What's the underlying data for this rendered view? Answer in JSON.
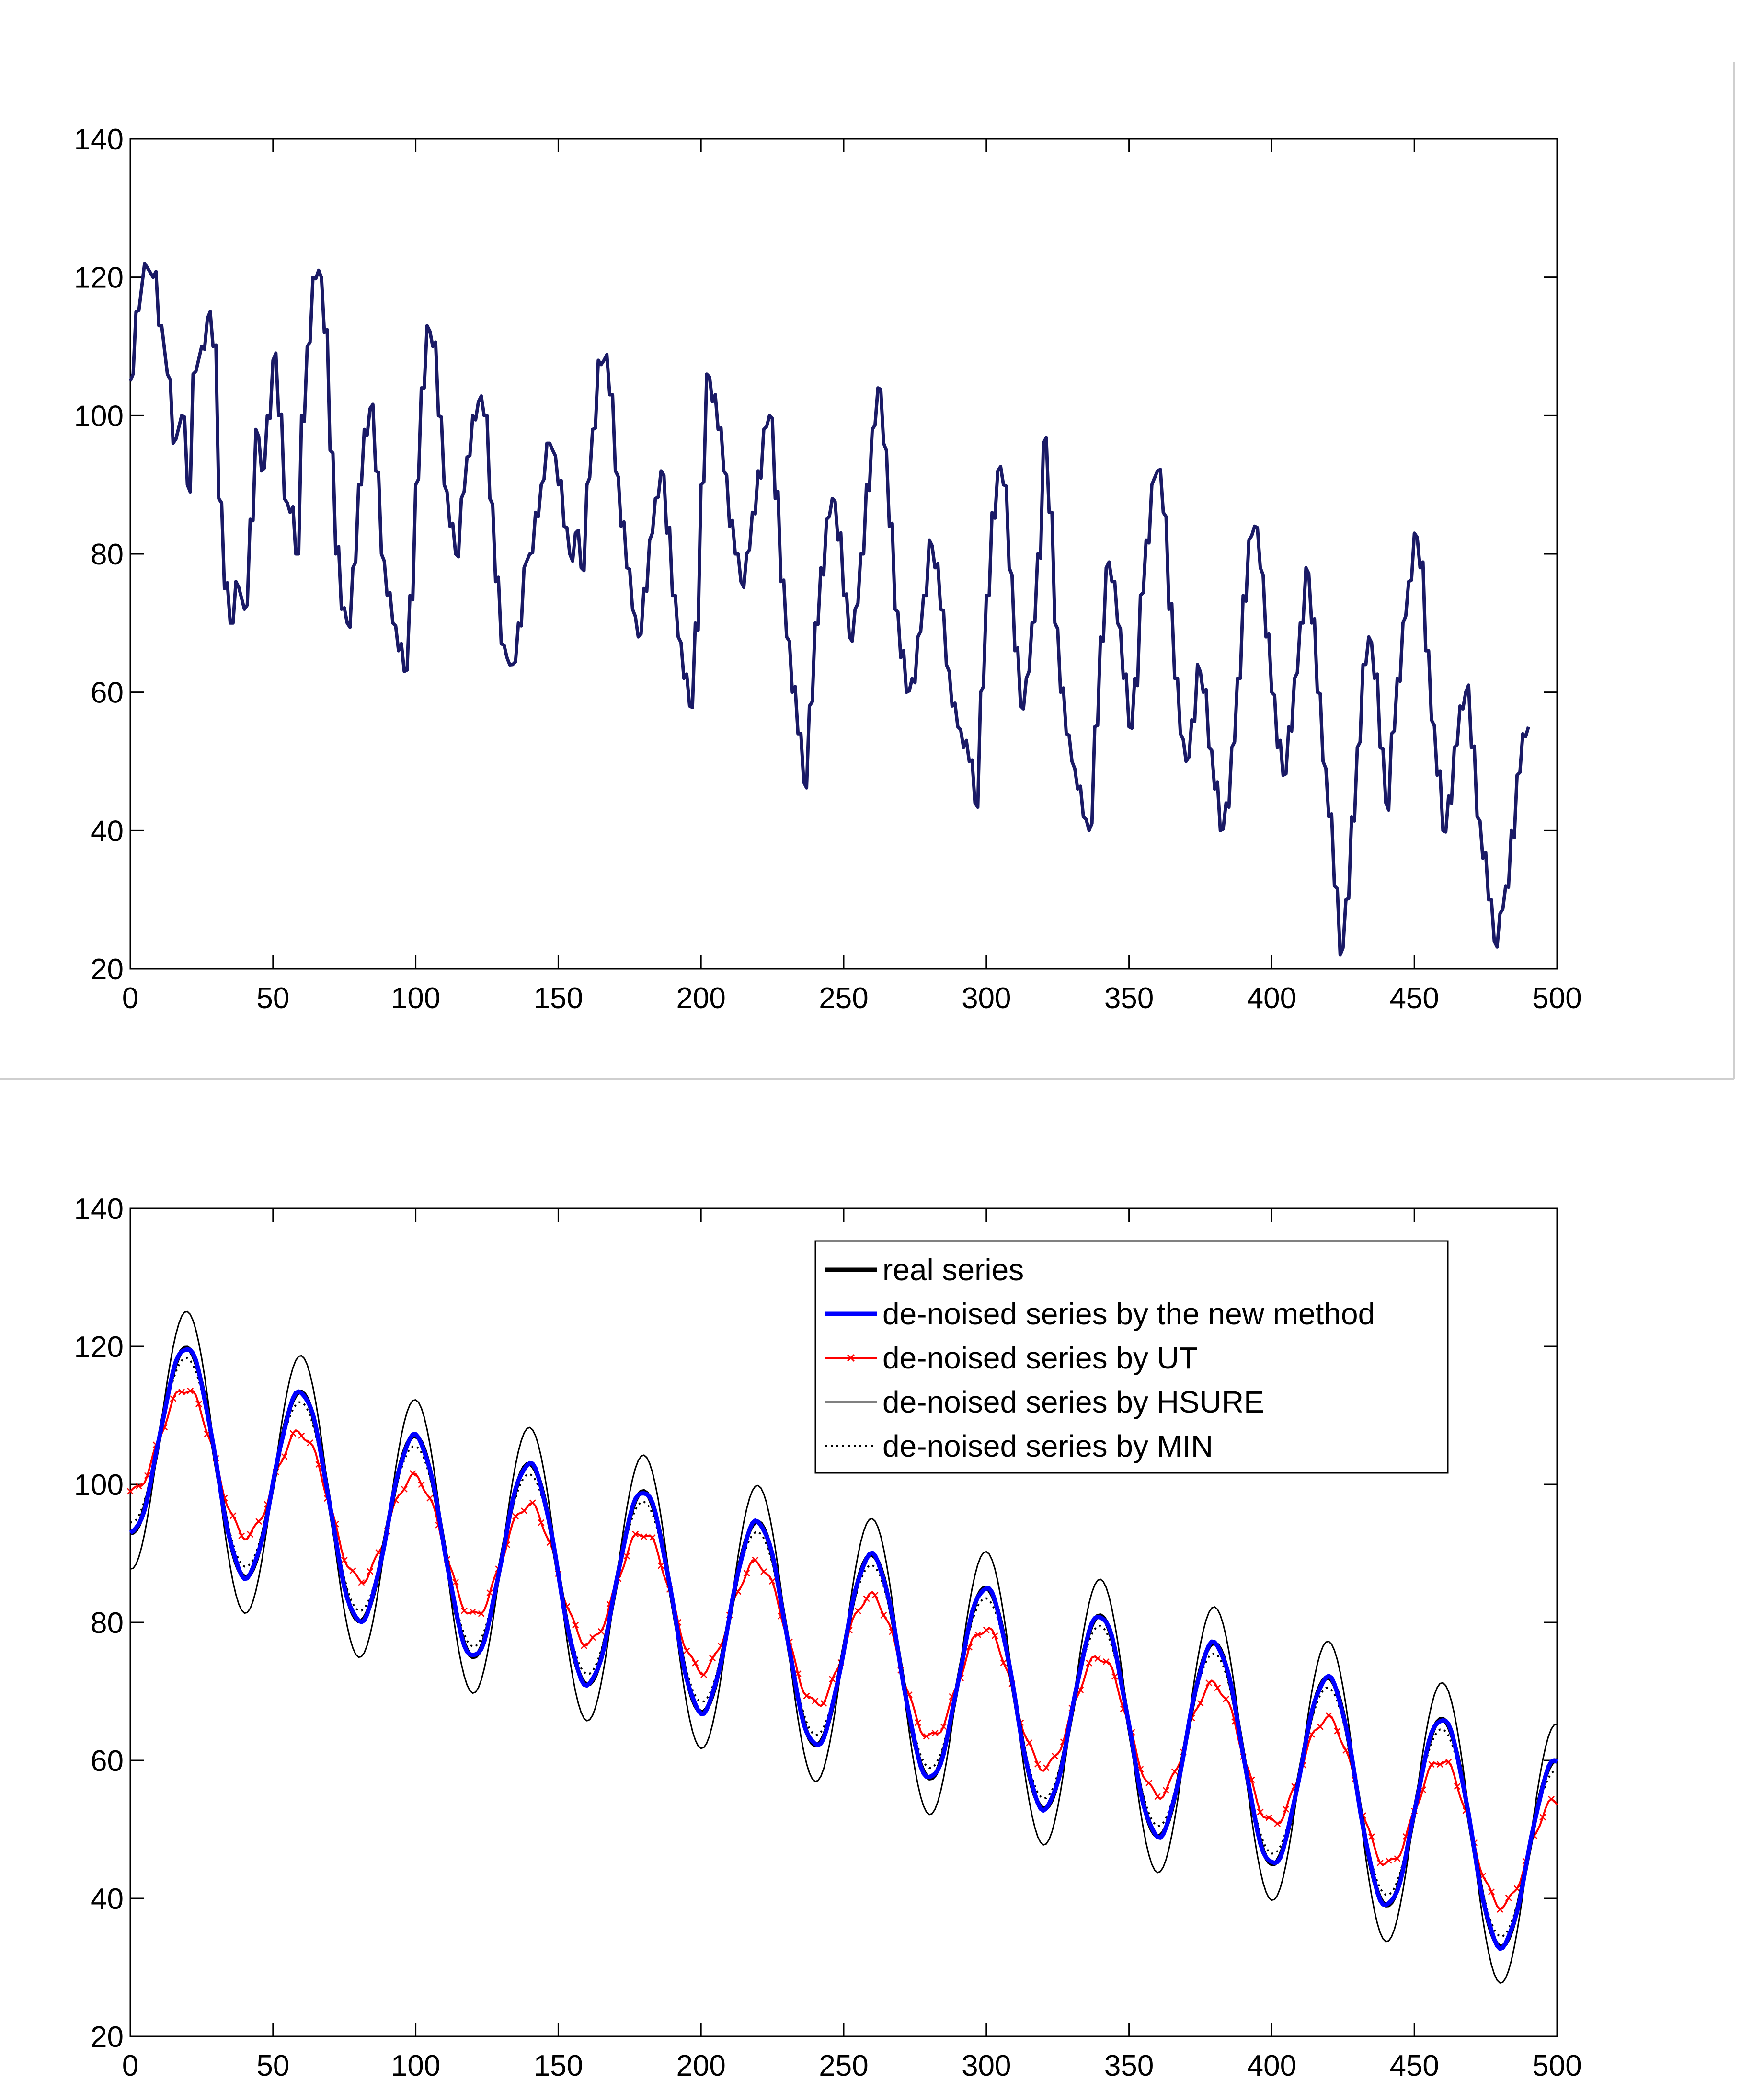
{
  "chart_data": [
    {
      "type": "line",
      "xlim": [
        0,
        500
      ],
      "ylim": [
        20,
        140
      ],
      "x_ticks": [
        "0",
        "50",
        "100",
        "150",
        "200",
        "250",
        "300",
        "350",
        "400",
        "450",
        "500"
      ],
      "y_ticks": [
        "20",
        "40",
        "60",
        "80",
        "100",
        "120",
        "140"
      ],
      "grid": false,
      "series": [
        {
          "color": "#1a1a66",
          "style": "solid",
          "points": [
            [
              0,
              105
            ],
            [
              2,
              115
            ],
            [
              5,
              122
            ],
            [
              8,
              120
            ],
            [
              10,
              113
            ],
            [
              13,
              106
            ],
            [
              15,
              96
            ],
            [
              18,
              100
            ],
            [
              20,
              90
            ],
            [
              22,
              106
            ],
            [
              25,
              110
            ],
            [
              27,
              114
            ],
            [
              29,
              110
            ],
            [
              31,
              88
            ],
            [
              33,
              75
            ],
            [
              35,
              70
            ],
            [
              37,
              76
            ],
            [
              40,
              72
            ],
            [
              42,
              85
            ],
            [
              44,
              98
            ],
            [
              46,
              92
            ],
            [
              48,
              100
            ],
            [
              50,
              108
            ],
            [
              52,
              100
            ],
            [
              54,
              88
            ],
            [
              56,
              86
            ],
            [
              58,
              80
            ],
            [
              60,
              100
            ],
            [
              62,
              110
            ],
            [
              64,
              120
            ],
            [
              66,
              121
            ],
            [
              68,
              112
            ],
            [
              70,
              95
            ],
            [
              72,
              80
            ],
            [
              74,
              72
            ],
            [
              76,
              70
            ],
            [
              78,
              78
            ],
            [
              80,
              90
            ],
            [
              82,
              98
            ],
            [
              84,
              101
            ],
            [
              86,
              92
            ],
            [
              88,
              80
            ],
            [
              90,
              74
            ],
            [
              92,
              70
            ],
            [
              94,
              66
            ],
            [
              96,
              63
            ],
            [
              98,
              74
            ],
            [
              100,
              90
            ],
            [
              102,
              104
            ],
            [
              104,
              113
            ],
            [
              106,
              110
            ],
            [
              108,
              100
            ],
            [
              110,
              90
            ],
            [
              112,
              84
            ],
            [
              114,
              80
            ],
            [
              116,
              88
            ],
            [
              118,
              94
            ],
            [
              120,
              100
            ],
            [
              122,
              102
            ],
            [
              124,
              100
            ],
            [
              126,
              88
            ],
            [
              128,
              76
            ],
            [
              130,
              67
            ],
            [
              132,
              65
            ],
            [
              134,
              64
            ],
            [
              136,
              70
            ],
            [
              138,
              78
            ],
            [
              140,
              80
            ],
            [
              142,
              86
            ],
            [
              144,
              90
            ],
            [
              146,
              96
            ],
            [
              148,
              95
            ],
            [
              150,
              90
            ],
            [
              152,
              84
            ],
            [
              154,
              80
            ],
            [
              156,
              83
            ],
            [
              158,
              78
            ],
            [
              160,
              90
            ],
            [
              162,
              98
            ],
            [
              164,
              108
            ],
            [
              166,
              108
            ],
            [
              168,
              103
            ],
            [
              170,
              92
            ],
            [
              172,
              84
            ],
            [
              174,
              78
            ],
            [
              176,
              72
            ],
            [
              178,
              68
            ],
            [
              180,
              75
            ],
            [
              182,
              82
            ],
            [
              184,
              88
            ],
            [
              186,
              92
            ],
            [
              188,
              83
            ],
            [
              190,
              74
            ],
            [
              192,
              68
            ],
            [
              194,
              62
            ],
            [
              196,
              58
            ],
            [
              198,
              70
            ],
            [
              200,
              90
            ],
            [
              202,
              106
            ],
            [
              204,
              102
            ],
            [
              206,
              98
            ],
            [
              208,
              92
            ],
            [
              210,
              84
            ],
            [
              212,
              80
            ],
            [
              214,
              76
            ],
            [
              216,
              80
            ],
            [
              218,
              86
            ],
            [
              220,
              92
            ],
            [
              222,
              98
            ],
            [
              224,
              100
            ],
            [
              226,
              88
            ],
            [
              228,
              76
            ],
            [
              230,
              68
            ],
            [
              232,
              60
            ],
            [
              234,
              54
            ],
            [
              236,
              47
            ],
            [
              238,
              58
            ],
            [
              240,
              70
            ],
            [
              242,
              78
            ],
            [
              244,
              85
            ],
            [
              246,
              88
            ],
            [
              248,
              82
            ],
            [
              250,
              74
            ],
            [
              252,
              68
            ],
            [
              254,
              72
            ],
            [
              256,
              80
            ],
            [
              258,
              90
            ],
            [
              260,
              98
            ],
            [
              262,
              104
            ],
            [
              264,
              96
            ],
            [
              266,
              84
            ],
            [
              268,
              72
            ],
            [
              270,
              65
            ],
            [
              272,
              60
            ],
            [
              274,
              62
            ],
            [
              276,
              68
            ],
            [
              278,
              74
            ],
            [
              280,
              82
            ],
            [
              282,
              78
            ],
            [
              284,
              72
            ],
            [
              286,
              64
            ],
            [
              288,
              58
            ],
            [
              290,
              55
            ],
            [
              292,
              52
            ],
            [
              294,
              50
            ],
            [
              296,
              44
            ],
            [
              298,
              60
            ],
            [
              300,
              74
            ],
            [
              302,
              86
            ],
            [
              304,
              92
            ],
            [
              306,
              90
            ],
            [
              308,
              78
            ],
            [
              310,
              66
            ],
            [
              312,
              58
            ],
            [
              314,
              62
            ],
            [
              316,
              70
            ],
            [
              318,
              80
            ],
            [
              320,
              96
            ],
            [
              322,
              86
            ],
            [
              324,
              70
            ],
            [
              326,
              60
            ],
            [
              328,
              54
            ],
            [
              330,
              50
            ],
            [
              332,
              46
            ],
            [
              334,
              42
            ],
            [
              336,
              40
            ],
            [
              338,
              55
            ],
            [
              340,
              68
            ],
            [
              342,
              78
            ],
            [
              344,
              76
            ],
            [
              346,
              70
            ],
            [
              348,
              62
            ],
            [
              350,
              55
            ],
            [
              352,
              62
            ],
            [
              354,
              74
            ],
            [
              356,
              82
            ],
            [
              358,
              90
            ],
            [
              360,
              92
            ],
            [
              362,
              86
            ],
            [
              364,
              72
            ],
            [
              366,
              62
            ],
            [
              368,
              54
            ],
            [
              370,
              50
            ],
            [
              372,
              56
            ],
            [
              374,
              64
            ],
            [
              376,
              60
            ],
            [
              378,
              52
            ],
            [
              380,
              46
            ],
            [
              382,
              40
            ],
            [
              384,
              44
            ],
            [
              386,
              52
            ],
            [
              388,
              62
            ],
            [
              390,
              74
            ],
            [
              392,
              82
            ],
            [
              394,
              84
            ],
            [
              396,
              78
            ],
            [
              398,
              68
            ],
            [
              400,
              60
            ],
            [
              402,
              52
            ],
            [
              404,
              48
            ],
            [
              406,
              55
            ],
            [
              408,
              62
            ],
            [
              410,
              70
            ],
            [
              412,
              78
            ],
            [
              414,
              70
            ],
            [
              416,
              60
            ],
            [
              418,
              50
            ],
            [
              420,
              42
            ],
            [
              422,
              32
            ],
            [
              424,
              22
            ],
            [
              426,
              30
            ],
            [
              428,
              42
            ],
            [
              430,
              52
            ],
            [
              432,
              64
            ],
            [
              434,
              68
            ],
            [
              436,
              62
            ],
            [
              438,
              52
            ],
            [
              440,
              44
            ],
            [
              442,
              54
            ],
            [
              444,
              62
            ],
            [
              446,
              70
            ],
            [
              448,
              76
            ],
            [
              450,
              83
            ],
            [
              452,
              78
            ],
            [
              454,
              66
            ],
            [
              456,
              56
            ],
            [
              458,
              48
            ],
            [
              460,
              40
            ],
            [
              462,
              45
            ],
            [
              464,
              52
            ],
            [
              466,
              58
            ],
            [
              468,
              60
            ],
            [
              470,
              52
            ],
            [
              472,
              42
            ],
            [
              474,
              36
            ],
            [
              476,
              30
            ],
            [
              478,
              24
            ],
            [
              480,
              28
            ],
            [
              482,
              32
            ],
            [
              484,
              40
            ],
            [
              486,
              48
            ],
            [
              488,
              54
            ],
            [
              490,
              55
            ]
          ]
        }
      ]
    },
    {
      "type": "line",
      "xlim": [
        0,
        500
      ],
      "ylim": [
        20,
        140
      ],
      "x_ticks": [
        "0",
        "50",
        "100",
        "150",
        "200",
        "250",
        "300",
        "350",
        "400",
        "450",
        "500"
      ],
      "y_ticks": [
        "20",
        "40",
        "60",
        "80",
        "100",
        "120",
        "140"
      ],
      "grid": false,
      "legend_position": "top-right",
      "series": [
        {
          "name": "real series",
          "color": "#000000",
          "style": "solid",
          "width": 9
        },
        {
          "name": "de-noised series by the new method",
          "color": "#0000ff",
          "style": "solid",
          "width": 9
        },
        {
          "name": "de-noised series by UT",
          "color": "#ff0000",
          "style": "solid-x",
          "width": 4
        },
        {
          "name": "de-noised series by HSURE",
          "color": "#000000",
          "style": "solid",
          "width": 3
        },
        {
          "name": "de-noised series by MIN",
          "color": "#000000",
          "style": "dotted",
          "width": 4
        }
      ],
      "wave": {
        "trend": [
          [
            0,
            108
          ],
          [
            100,
            92
          ],
          [
            200,
            82
          ],
          [
            300,
            70
          ],
          [
            400,
            60
          ],
          [
            500,
            45
          ]
        ],
        "period": 40,
        "amplitude": 15,
        "phase": 30
      }
    }
  ]
}
